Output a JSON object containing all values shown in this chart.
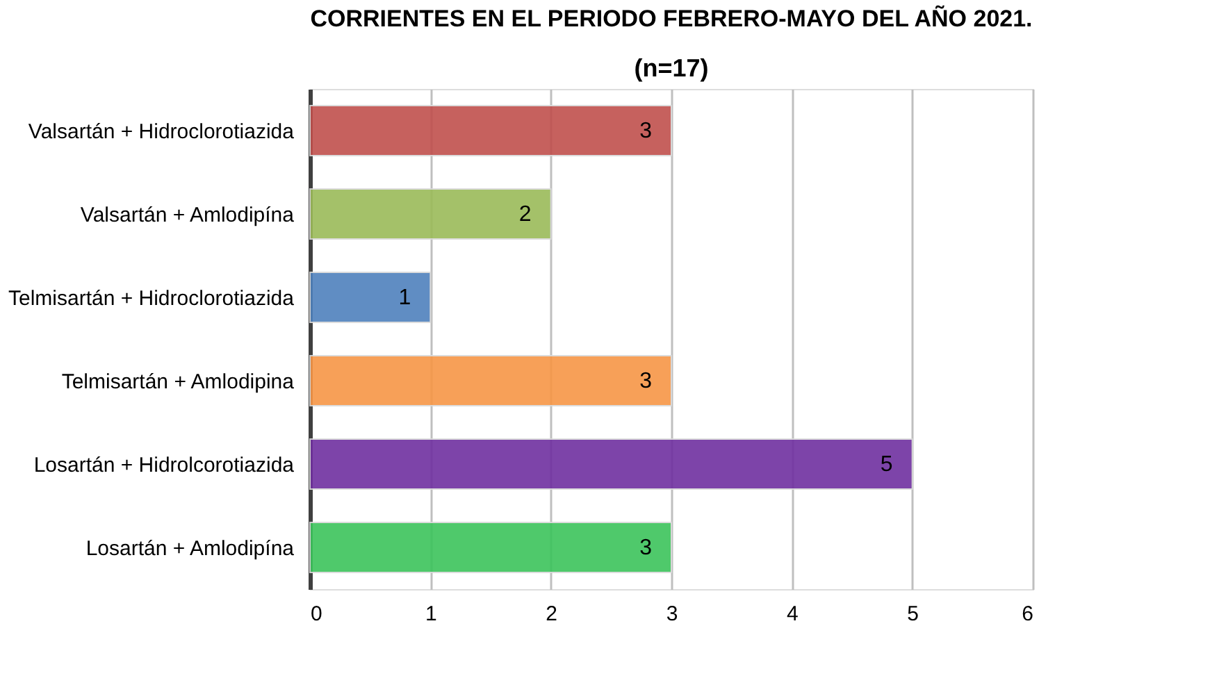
{
  "chart_data": {
    "type": "bar",
    "orientation": "horizontal",
    "title": "CORRIENTES EN EL PERIODO FEBRERO-MAYO DEL AÑO 2021.",
    "subtitle": "(n=17)",
    "categories": [
      "Valsartán + Hidroclorotiazida",
      "Valsartán + Amlodipína",
      "Telmisartán + Hidroclorotiazida",
      "Telmisartán + Amlodipina",
      "Losartán + Hidrolcorotiazida",
      "Losartán + Amlodipína"
    ],
    "values": [
      3,
      2,
      1,
      3,
      5,
      3
    ],
    "colors": [
      "#c0504d",
      "#9bbb59",
      "#4f81bd",
      "#f79646",
      "#7030a0",
      "#3cc45c"
    ],
    "xlim": [
      0,
      6
    ],
    "xticks": [
      0,
      1,
      2,
      3,
      4,
      5,
      6
    ],
    "grid": "x",
    "data_labels": true
  }
}
